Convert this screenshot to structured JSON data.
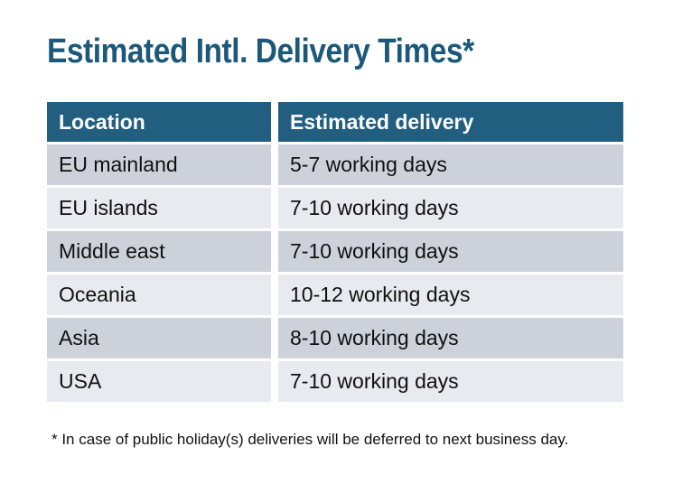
{
  "title": "Estimated Intl. Delivery Times*",
  "table": {
    "headers": [
      "Location",
      "Estimated delivery"
    ],
    "rows": [
      {
        "location": "EU mainland",
        "delivery": "5-7 working days"
      },
      {
        "location": "EU islands",
        "delivery": "7-10 working days"
      },
      {
        "location": "Middle east",
        "delivery": "7-10 working days"
      },
      {
        "location": "Oceania",
        "delivery": "10-12 working days"
      },
      {
        "location": "Asia",
        "delivery": "8-10 working days"
      },
      {
        "location": "USA",
        "delivery": "7-10 working days"
      }
    ]
  },
  "footnote": "* In case of public holiday(s) deliveries will be deferred to next business day.",
  "colors": {
    "title_text": "#1b587a",
    "header_bg": "#215e80",
    "header_text": "#ffffff",
    "row_dark": "#cdd2da",
    "row_light": "#e7eaee",
    "body_text": "#101010",
    "background": "#ffffff"
  },
  "chart_data": {
    "type": "table",
    "title": "Estimated Intl. Delivery Times*",
    "columns": [
      "Location",
      "Estimated delivery"
    ],
    "rows": [
      [
        "EU mainland",
        "5-7 working days"
      ],
      [
        "EU islands",
        "7-10 working days"
      ],
      [
        "Middle east",
        "7-10 working days"
      ],
      [
        "Oceania",
        "10-12 working days"
      ],
      [
        "Asia",
        "8-10 working days"
      ],
      [
        "USA",
        "7-10 working days"
      ]
    ]
  }
}
